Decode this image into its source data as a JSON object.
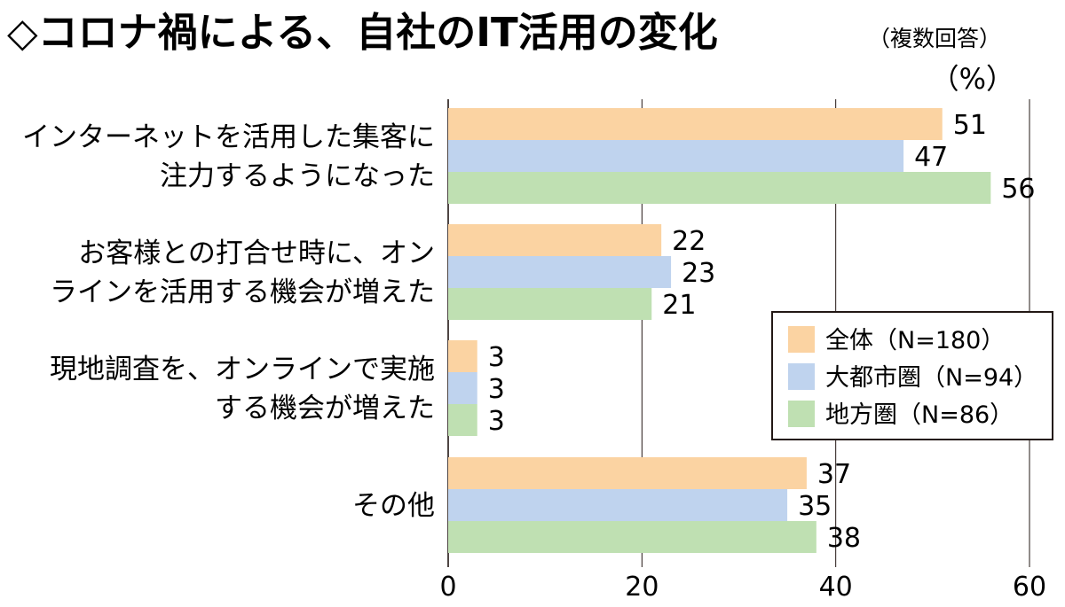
{
  "chart_data": {
    "type": "bar",
    "orientation": "horizontal",
    "title": "◇コロナ禍による、自社のIT活用の変化",
    "note": "（複数回答）",
    "unit": "（%）",
    "categories": [
      [
        "インターネットを活用した集客に",
        "注力するようになった"
      ],
      [
        "お客様との打合せ時に、オン",
        "ラインを活用する機会が増えた"
      ],
      [
        "現地調査を、オンラインで実施",
        "する機会が増えた"
      ],
      [
        "その他"
      ]
    ],
    "series": [
      {
        "name": "全体（N=180）",
        "values": [
          51,
          22,
          3,
          37
        ]
      },
      {
        "name": "大都市圏（N=94）",
        "values": [
          47,
          23,
          3,
          35
        ]
      },
      {
        "name": "地方圏（N=86）",
        "values": [
          56,
          21,
          3,
          38
        ]
      }
    ],
    "colors": [
      "#fbd3a2",
      "#bfd3ee",
      "#bfe0b2"
    ],
    "xlim": [
      0,
      60
    ],
    "xticks": [
      0,
      20,
      40,
      60
    ],
    "grid": true,
    "legend_position": "right-middle"
  }
}
